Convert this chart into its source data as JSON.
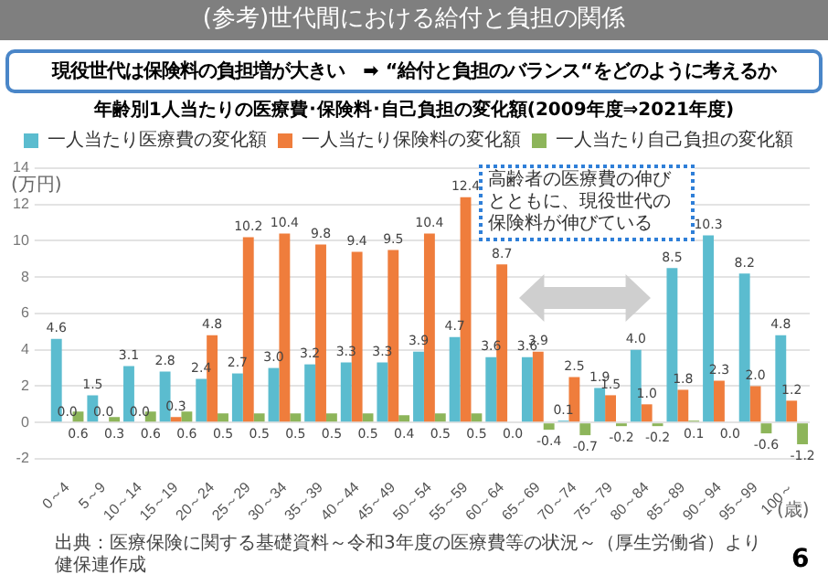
{
  "chart_data": {
    "type": "bar",
    "title": "年齢別1人当たりの医療費･保険料･自己負担の変化額(2009年度⇒2021年度)",
    "ylabel": "(万円)",
    "xlabel": "(歳)",
    "annotations": [
      "(参考)世代間における給付と負担の関係",
      "現役世代は保険料の負担増が大きい　➡ “給付と負担のバランス“をどのように考えるか",
      "高齢者の医療費の伸びとともに、現役世代の保険料が伸びている",
      "出典：医療保険に関する基礎資料～令和3年度の医療費等の状況～（厚生労働省）より健保連作成",
      "6"
    ],
    "categories": [
      "0～4",
      "5～9",
      "10～14",
      "15～19",
      "20～24",
      "25～29",
      "30～34",
      "35～39",
      "40～44",
      "45～49",
      "50～54",
      "55～59",
      "60～64",
      "65～69",
      "70～74",
      "75～79",
      "80～84",
      "85～89",
      "90～94",
      "95～99",
      "100～"
    ],
    "series": [
      {
        "name": "一人当たり医療費の変化額",
        "color": "#5bbccf",
        "values": [
          4.6,
          1.5,
          3.1,
          2.8,
          2.4,
          2.7,
          3.0,
          3.2,
          3.3,
          3.3,
          3.9,
          4.7,
          3.6,
          3.6,
          0.1,
          1.9,
          4.0,
          8.5,
          10.3,
          8.2,
          4.8
        ],
        "value_labels": [
          "4.6",
          "1.5",
          "3.1",
          "2.8",
          "2.4",
          "2.7",
          "3.0",
          "3.2",
          "3.3",
          "3.3",
          "3.9",
          "4.7",
          "3.6",
          "3.6",
          "0.1",
          "1.9",
          "4.0",
          "8.5",
          "10.3",
          "8.2",
          "4.8"
        ]
      },
      {
        "name": "一人当たり保険料の変化額",
        "color": "#ef7d3c",
        "values": [
          0.0,
          0.0,
          0.0,
          0.3,
          4.8,
          10.2,
          10.4,
          9.8,
          9.4,
          9.5,
          10.4,
          12.4,
          8.7,
          3.9,
          2.5,
          1.5,
          1.0,
          1.8,
          2.3,
          2.0,
          1.2
        ],
        "value_labels": [
          "0.0",
          "0.0",
          "0.0",
          "0.3",
          "4.8",
          "10.2",
          "10.4",
          "9.8",
          "9.4",
          "9.5",
          "10.4",
          "12.4",
          "8.7",
          "3.9",
          "2.5",
          "1.5",
          "1.0",
          "1.8",
          "2.3",
          "2.0",
          "1.2"
        ]
      },
      {
        "name": "一人当たり自己負担の変化額",
        "color": "#8db55a",
        "values": [
          0.6,
          0.3,
          0.6,
          0.6,
          0.5,
          0.5,
          0.5,
          0.5,
          0.5,
          0.4,
          0.5,
          0.5,
          0.0,
          -0.4,
          -0.7,
          -0.2,
          -0.2,
          0.1,
          0.0,
          -0.6,
          -1.2
        ],
        "value_labels": [
          "0.6",
          "0.3",
          "0.6",
          "0.6",
          "0.5",
          "0.5",
          "0.5",
          "0.5",
          "0.5",
          "0.4",
          "0.5",
          "0.5",
          "0.0",
          "-0.4",
          "-0.7",
          "-0.2",
          "-0.2",
          "0.1",
          "0.0",
          "-0.6",
          "-1.2"
        ]
      }
    ],
    "ylim": [
      -2,
      14
    ],
    "yticks": [
      -2,
      0,
      2,
      4,
      6,
      8,
      10,
      12,
      14
    ],
    "grid": "y",
    "legend": "top"
  }
}
